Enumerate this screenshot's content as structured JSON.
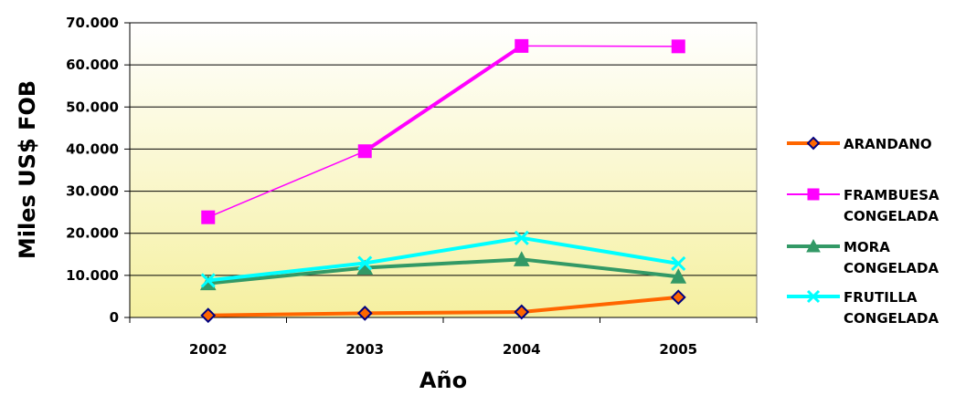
{
  "chart_data": {
    "type": "line",
    "xlabel": "Año",
    "ylabel": "Miles US$ FOB",
    "categories": [
      "2002",
      "2003",
      "2004",
      "2005"
    ],
    "ylim": [
      0,
      70000
    ],
    "yticks": [
      0,
      10000,
      20000,
      30000,
      40000,
      50000,
      60000,
      70000
    ],
    "ytick_labels": [
      "0",
      "10.000",
      "20.000",
      "30.000",
      "40.000",
      "50.000",
      "60.000",
      "70.000"
    ],
    "grid": true,
    "legend_position": "right",
    "plot_background": [
      "#ffffff",
      "#f5f0a0"
    ],
    "series": [
      {
        "name": "ARANDANO",
        "legend_lines": [
          "ARANDANO"
        ],
        "values": [
          500,
          1000,
          1300,
          4800
        ],
        "color": "#ff6600",
        "marker": "diamond",
        "marker_fill": "#ff6600",
        "marker_stroke": "#000080"
      },
      {
        "name": "FRAMBUESA CONGELADA",
        "legend_lines": [
          "FRAMBUESA",
          "CONGELADA"
        ],
        "values": [
          23800,
          39500,
          64500,
          64400
        ],
        "color": "#ff00ff",
        "marker": "square",
        "marker_fill": "#ff00ff",
        "marker_stroke": "#ff00ff"
      },
      {
        "name": "MORA CONGELADA",
        "legend_lines": [
          "MORA",
          "CONGELADA"
        ],
        "values": [
          8100,
          11800,
          13800,
          9700
        ],
        "color": "#339966",
        "marker": "triangle",
        "marker_fill": "#339966",
        "marker_stroke": "#339966"
      },
      {
        "name": "FRUTILLA CONGELADA",
        "legend_lines": [
          "FRUTILLA",
          "CONGELADA"
        ],
        "values": [
          8800,
          12900,
          18900,
          12800
        ],
        "color": "#00ffff",
        "marker": "x",
        "marker_fill": "#00ffff",
        "marker_stroke": "#00ffff"
      }
    ]
  }
}
